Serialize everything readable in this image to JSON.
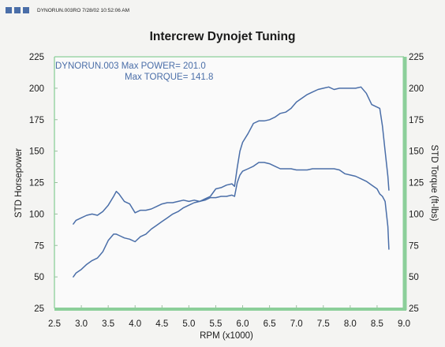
{
  "header": {
    "squares": [
      "#4a6ea8",
      "#4a6ea8",
      "#4a6ea8"
    ],
    "file_line": "DYNORUN.003RO  7/28/02 10:52:06 AM"
  },
  "chart_data": {
    "type": "line",
    "title": "Intercrew Dynojet Tuning",
    "xlabel": "RPM (x1000)",
    "ylabel_left": "STD Horsepower",
    "ylabel_right": "STD Torque (ft-lbs)",
    "annotation_line1": "DYNORUN.003  Max POWER= 201.0",
    "annotation_line2": "Max TORQUE= 141.8",
    "xlim": [
      2.5,
      9.0
    ],
    "ylim": [
      25,
      225
    ],
    "x_ticks": [
      "2.5",
      "3.0",
      "3.5",
      "4.0",
      "4.5",
      "5.0",
      "5.5",
      "6.0",
      "6.5",
      "7.0",
      "7.5",
      "8.0",
      "8.5",
      "9.0"
    ],
    "y_ticks_left": [
      "25",
      "50",
      "75",
      "100",
      "125",
      "150",
      "175",
      "200",
      "225"
    ],
    "y_ticks_right": [
      "25",
      "50",
      "75",
      "100",
      "125",
      "150",
      "175",
      "200",
      "225"
    ],
    "line_color": "#4a6ea8",
    "frame_color": "#8ccf9a",
    "series": [
      {
        "x": [
          2.85,
          2.9,
          3.0,
          3.1,
          3.2,
          3.3,
          3.4,
          3.5,
          3.6,
          3.65,
          3.7,
          3.8,
          3.9,
          4.0,
          4.1,
          4.2,
          4.3,
          4.4,
          4.5,
          4.6,
          4.7,
          4.8,
          4.9,
          5.0,
          5.1,
          5.2,
          5.3,
          5.4,
          5.5,
          5.6,
          5.7,
          5.8,
          5.85,
          5.9,
          5.95,
          6.0,
          6.1,
          6.2,
          6.3,
          6.4,
          6.5,
          6.6,
          6.7,
          6.8,
          6.9,
          7.0,
          7.1,
          7.2,
          7.3,
          7.4,
          7.5,
          7.6,
          7.7,
          7.8,
          7.9,
          8.0,
          8.1,
          8.2,
          8.3,
          8.4,
          8.5,
          8.55,
          8.6,
          8.65,
          8.7,
          8.72
        ],
        "values": [
          50,
          53,
          56,
          60,
          63,
          65,
          70,
          79,
          84,
          84,
          83,
          81,
          80,
          78,
          82,
          84,
          88,
          91,
          94,
          97,
          100,
          102,
          105,
          107,
          109,
          110,
          112,
          114,
          120,
          121,
          123,
          124,
          122,
          137,
          150,
          157,
          164,
          172,
          174,
          174,
          175,
          177,
          180,
          181,
          184,
          189,
          192,
          195,
          197,
          199,
          200,
          201,
          199,
          200,
          200,
          200,
          200,
          201,
          196,
          187,
          185,
          184,
          170,
          150,
          130,
          119
        ]
      },
      {
        "x": [
          2.85,
          2.9,
          3.0,
          3.1,
          3.2,
          3.3,
          3.4,
          3.5,
          3.6,
          3.65,
          3.7,
          3.8,
          3.9,
          4.0,
          4.1,
          4.2,
          4.3,
          4.4,
          4.5,
          4.6,
          4.7,
          4.8,
          4.9,
          5.0,
          5.1,
          5.2,
          5.3,
          5.4,
          5.5,
          5.6,
          5.7,
          5.8,
          5.85,
          5.9,
          5.95,
          6.0,
          6.1,
          6.2,
          6.3,
          6.4,
          6.5,
          6.6,
          6.7,
          6.8,
          6.9,
          7.0,
          7.1,
          7.2,
          7.3,
          7.4,
          7.5,
          7.6,
          7.7,
          7.8,
          7.9,
          8.0,
          8.1,
          8.2,
          8.3,
          8.4,
          8.5,
          8.55,
          8.6,
          8.65,
          8.7,
          8.72
        ],
        "values": [
          92,
          95,
          97,
          99,
          100,
          99,
          102,
          107,
          114,
          118,
          116,
          110,
          108,
          101,
          103,
          103,
          104,
          106,
          108,
          109,
          109,
          110,
          111,
          110,
          111,
          110,
          111,
          113,
          113,
          114,
          114,
          115,
          114,
          125,
          131,
          134,
          136,
          138,
          141,
          141,
          140,
          138,
          136,
          136,
          136,
          135,
          135,
          135,
          136,
          136,
          136,
          136,
          136,
          135,
          132,
          131,
          130,
          128,
          126,
          123,
          120,
          116,
          114,
          110,
          90,
          72
        ]
      }
    ]
  }
}
